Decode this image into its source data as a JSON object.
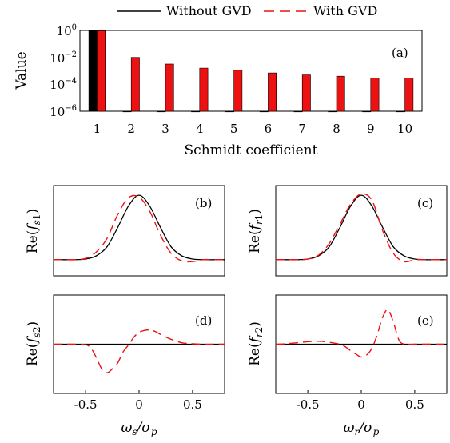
{
  "legend": [
    {
      "label": "Without GVD",
      "color": "#000000",
      "dash": "solid"
    },
    {
      "label": "With GVD",
      "color": "#ee1111",
      "dash": "dashed"
    }
  ],
  "chart_data": [
    {
      "id": "a",
      "type": "bar",
      "panel_label": "(a)",
      "xlabel": "Schmidt coefficient",
      "ylabel": "Value",
      "yscale": "log",
      "ylim": [
        1e-06,
        1
      ],
      "yticks": [
        "10^0",
        "10^-2",
        "10^-4",
        "10^-6"
      ],
      "categories": [
        "1",
        "2",
        "3",
        "4",
        "5",
        "6",
        "7",
        "8",
        "9",
        "10"
      ],
      "series": [
        {
          "name": "Without GVD",
          "color": "#000000",
          "values": [
            1.0,
            1e-06,
            1e-06,
            1e-06,
            1e-06,
            1e-06,
            1e-06,
            1e-06,
            1e-06,
            1e-06
          ]
        },
        {
          "name": "With GVD",
          "color": "#ee1111",
          "values": [
            0.95,
            0.01,
            0.0032,
            0.0016,
            0.0011,
            0.0007,
            0.0005,
            0.0004,
            0.0003,
            0.0003
          ]
        }
      ]
    },
    {
      "id": "b",
      "type": "line",
      "panel_label": "(b)",
      "ylabel": "Re(f_s1)",
      "xlim": [
        -0.8,
        0.8
      ],
      "ylim": [
        -0.25,
        1.15
      ],
      "x": [
        -0.8,
        -0.7,
        -0.6,
        -0.5,
        -0.4,
        -0.3,
        -0.2,
        -0.1,
        0.0,
        0.1,
        0.2,
        0.3,
        0.4,
        0.5,
        0.6,
        0.7,
        0.8
      ],
      "series": [
        {
          "name": "Without GVD",
          "color": "#000000",
          "dash": "solid",
          "y": [
            0.0,
            0.0,
            0.0,
            0.01,
            0.06,
            0.2,
            0.5,
            0.83,
            1.0,
            0.83,
            0.5,
            0.2,
            0.06,
            0.01,
            0.0,
            0.0,
            0.0
          ]
        },
        {
          "name": "With GVD",
          "color": "#ee1111",
          "dash": "dashed",
          "y": [
            0.0,
            0.0,
            0.0,
            0.02,
            0.12,
            0.33,
            0.7,
            0.96,
            0.97,
            0.75,
            0.38,
            0.1,
            -0.02,
            -0.03,
            0.0,
            0.0,
            0.0
          ]
        }
      ]
    },
    {
      "id": "c",
      "type": "line",
      "panel_label": "(c)",
      "ylabel": "Re(f_r1)",
      "xlim": [
        -0.8,
        0.8
      ],
      "ylim": [
        -0.25,
        1.15
      ],
      "x": [
        -0.8,
        -0.7,
        -0.6,
        -0.5,
        -0.4,
        -0.3,
        -0.2,
        -0.1,
        0.0,
        0.1,
        0.2,
        0.3,
        0.4,
        0.5,
        0.6,
        0.7,
        0.8
      ],
      "series": [
        {
          "name": "Without GVD",
          "color": "#000000",
          "dash": "solid",
          "y": [
            0.0,
            0.0,
            0.0,
            0.01,
            0.06,
            0.2,
            0.5,
            0.83,
            1.0,
            0.83,
            0.5,
            0.2,
            0.06,
            0.01,
            0.0,
            0.0,
            0.0
          ]
        },
        {
          "name": "With GVD",
          "color": "#ee1111",
          "dash": "dashed",
          "y": [
            0.0,
            0.0,
            0.0,
            0.01,
            0.07,
            0.25,
            0.55,
            0.86,
            1.02,
            0.92,
            0.45,
            0.1,
            -0.03,
            0.0,
            0.0,
            0.0,
            0.0
          ]
        }
      ]
    },
    {
      "id": "d",
      "type": "line",
      "panel_label": "(d)",
      "ylabel": "Re(f_s2)",
      "xlabel": "ω_s/σ_p",
      "xlim": [
        -0.8,
        0.8
      ],
      "ylim": [
        -1.0,
        1.0
      ],
      "xticks": [
        "-0.5",
        "0",
        "0.5"
      ],
      "x": [
        -0.8,
        -0.7,
        -0.6,
        -0.5,
        -0.45,
        -0.4,
        -0.35,
        -0.3,
        -0.25,
        -0.2,
        -0.15,
        -0.1,
        -0.05,
        0.0,
        0.05,
        0.1,
        0.15,
        0.2,
        0.3,
        0.4,
        0.5,
        0.6,
        0.7,
        0.8
      ],
      "series": [
        {
          "name": "Without GVD",
          "color": "#000000",
          "dash": "solid",
          "y": [
            0,
            0,
            0,
            0,
            0,
            0,
            0,
            0,
            0,
            0,
            0,
            0,
            0,
            0,
            0,
            0,
            0,
            0,
            0,
            0,
            0,
            0,
            0,
            0
          ]
        },
        {
          "name": "With GVD",
          "color": "#ee1111",
          "dash": "dashed",
          "y": [
            0.0,
            0.0,
            0.0,
            -0.01,
            -0.08,
            -0.27,
            -0.5,
            -0.58,
            -0.5,
            -0.38,
            -0.16,
            -0.02,
            0.14,
            0.24,
            0.28,
            0.29,
            0.26,
            0.2,
            0.1,
            0.03,
            0.01,
            0.0,
            0.0,
            0.0
          ]
        }
      ]
    },
    {
      "id": "e",
      "type": "line",
      "panel_label": "(e)",
      "ylabel": "Re(f_r2)",
      "xlabel": "ω_r/σ_p",
      "xlim": [
        -0.8,
        0.8
      ],
      "ylim": [
        -1.0,
        1.0
      ],
      "xticks": [
        "-0.5",
        "0",
        "0.5"
      ],
      "x": [
        -0.8,
        -0.7,
        -0.6,
        -0.5,
        -0.4,
        -0.3,
        -0.2,
        -0.15,
        -0.1,
        -0.05,
        0.0,
        0.05,
        0.1,
        0.15,
        0.2,
        0.25,
        0.3,
        0.35,
        0.4,
        0.5,
        0.6,
        0.7,
        0.8
      ],
      "series": [
        {
          "name": "Without GVD",
          "color": "#000000",
          "dash": "solid",
          "y": [
            0,
            0,
            0,
            0,
            0,
            0,
            0,
            0,
            0,
            0,
            0,
            0,
            0,
            0,
            0,
            0,
            0,
            0,
            0,
            0,
            0,
            0,
            0
          ]
        },
        {
          "name": "With GVD",
          "color": "#ee1111",
          "dash": "dashed",
          "y": [
            0.0,
            0.01,
            0.03,
            0.05,
            0.06,
            0.04,
            0.0,
            -0.05,
            -0.13,
            -0.2,
            -0.26,
            -0.22,
            -0.08,
            0.2,
            0.55,
            0.7,
            0.45,
            0.1,
            0.0,
            0.0,
            0.0,
            0.0,
            0.0
          ]
        }
      ]
    }
  ]
}
